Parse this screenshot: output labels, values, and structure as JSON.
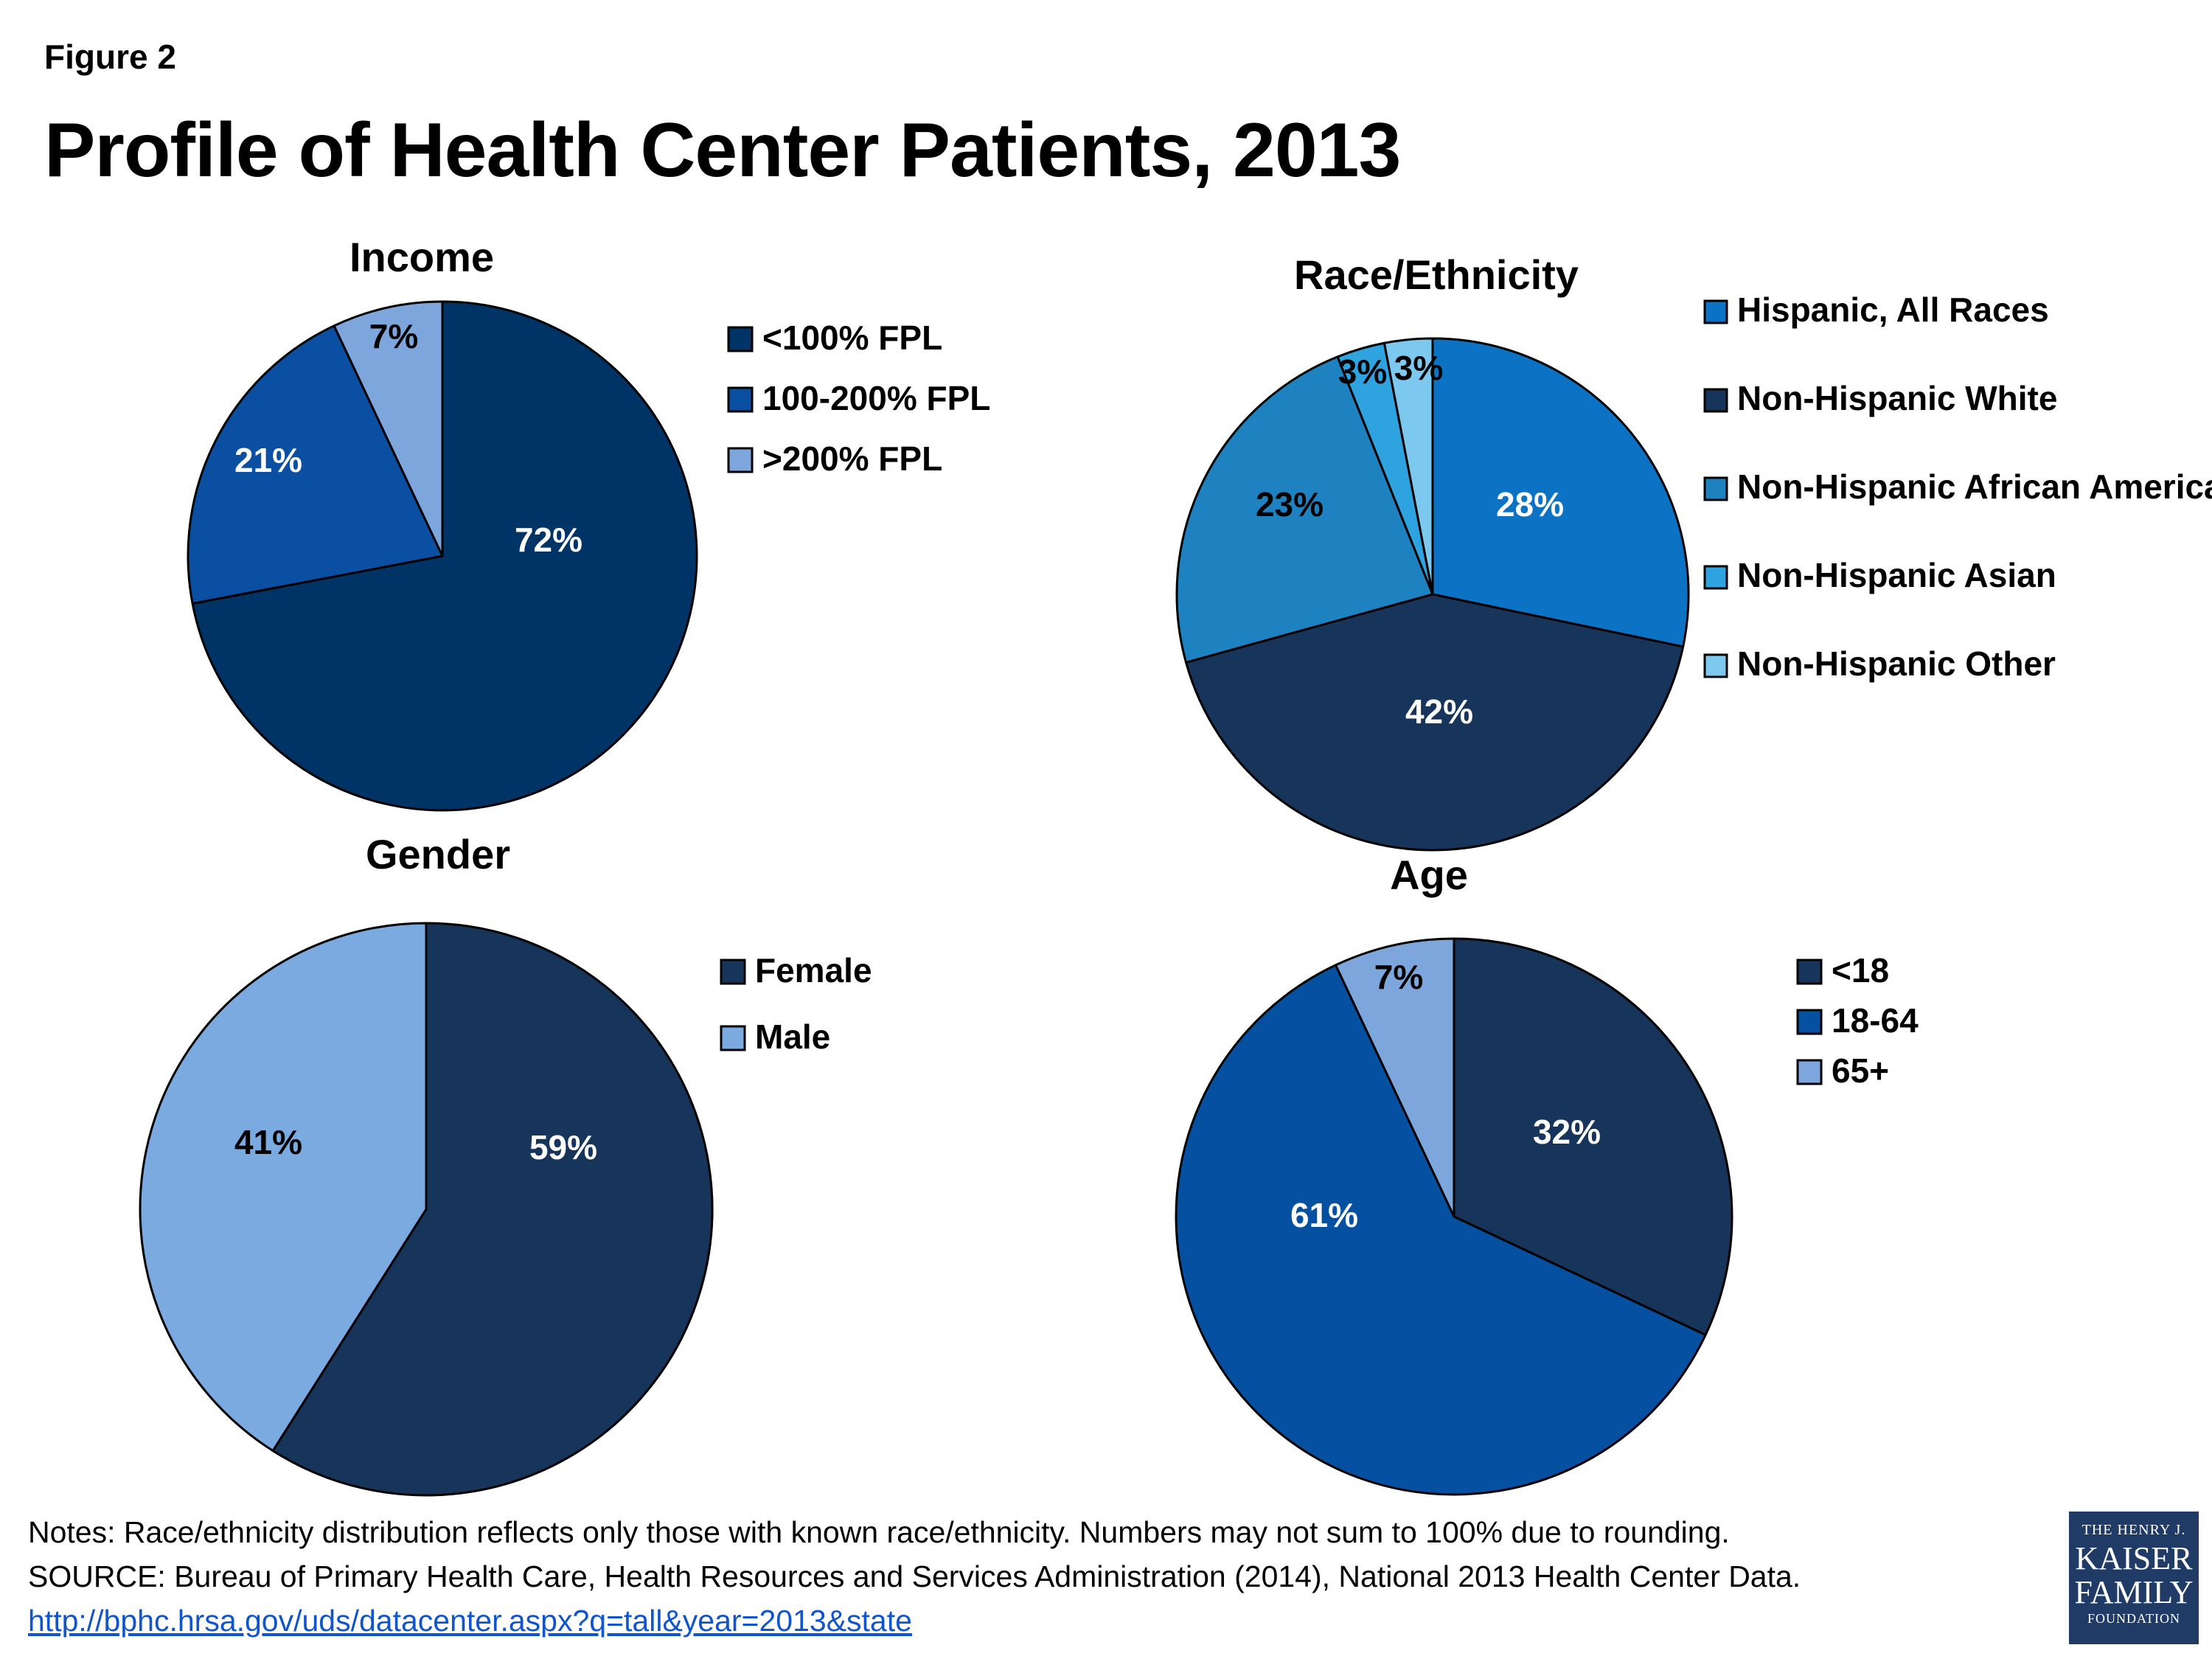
{
  "figure_label": "Figure 2",
  "title": "Profile of Health Center Patients, 2013",
  "chart_data": [
    {
      "type": "pie",
      "title": "Income",
      "categories": [
        "<100% FPL",
        "100-200% FPL",
        ">200% FPL"
      ],
      "values": [
        72,
        21,
        7
      ],
      "labels": [
        "72%",
        "21%",
        "7%"
      ],
      "colors": [
        "#003366",
        "#0b4fa2",
        "#7da7dc"
      ],
      "label_colors": [
        "#ffffff",
        "#ffffff",
        "#000000"
      ]
    },
    {
      "type": "pie",
      "title": "Race/Ethnicity",
      "categories": [
        "Hispanic, All Races",
        "Non-Hispanic White",
        "Non-Hispanic African American",
        "Non-Hispanic Asian",
        "Non-Hispanic Other"
      ],
      "values": [
        28,
        42,
        23,
        3,
        3
      ],
      "labels": [
        "28%",
        "42%",
        "23%",
        "3%",
        "3%"
      ],
      "colors": [
        "#0b72c4",
        "#17345a",
        "#1d82bf",
        "#2ea3e0",
        "#7dc8ef"
      ],
      "label_colors": [
        "#ffffff",
        "#ffffff",
        "#000000",
        "#000000",
        "#000000"
      ]
    },
    {
      "type": "pie",
      "title": "Gender",
      "categories": [
        "Female",
        "Male"
      ],
      "values": [
        59,
        41
      ],
      "labels": [
        "59%",
        "41%"
      ],
      "colors": [
        "#17345a",
        "#7aaae0"
      ],
      "label_colors": [
        "#ffffff",
        "#000000"
      ]
    },
    {
      "type": "pie",
      "title": "Age",
      "categories": [
        "<18",
        "18-64",
        "65+"
      ],
      "values": [
        32,
        61,
        7
      ],
      "labels": [
        "32%",
        "61%",
        "7%"
      ],
      "colors": [
        "#17345a",
        "#0550a0",
        "#7da7dc"
      ],
      "label_colors": [
        "#ffffff",
        "#ffffff",
        "#000000"
      ]
    }
  ],
  "notes": {
    "line1": "Notes: Race/ethnicity distribution reflects only those with known race/ethnicity. Numbers may not sum to 100% due to rounding.",
    "line2": "SOURCE: Bureau of Primary Health Care, Health Resources and Services Administration (2014), National 2013 Health Center Data.",
    "link": "http://bphc.hrsa.gov/uds/datacenter.aspx?q=tall&year=2013&state"
  },
  "logo": {
    "line1": "THE HENRY J.",
    "line2": "KAISER",
    "line3": "FAMILY",
    "line4": "FOUNDATION"
  }
}
